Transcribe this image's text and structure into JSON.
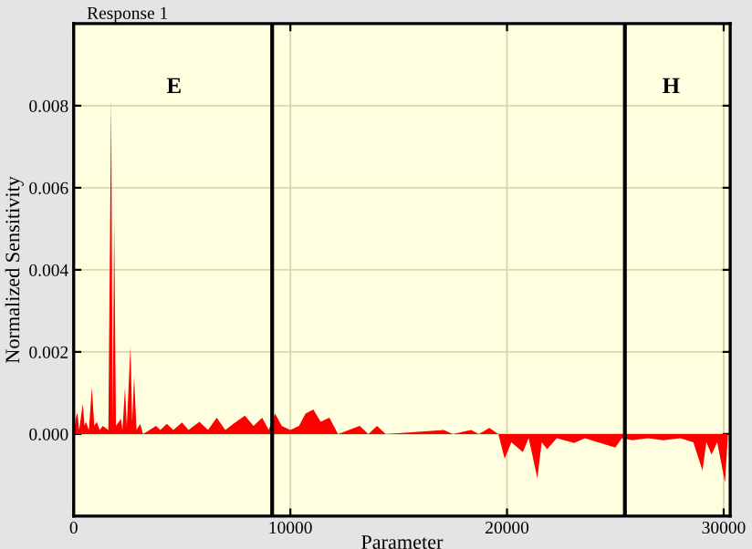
{
  "chart_data": {
    "type": "area",
    "title": "Response 1",
    "xlabel": "Parameter",
    "ylabel": "Normalized Sensitivity",
    "x": [
      0,
      100,
      170,
      250,
      420,
      500,
      560,
      700,
      840,
      950,
      1060,
      1200,
      1340,
      1600,
      1730,
      1800,
      1870,
      1950,
      2180,
      2250,
      2370,
      2450,
      2620,
      2700,
      2790,
      2900,
      3070,
      3200,
      3500,
      3800,
      4000,
      4300,
      4600,
      5000,
      5300,
      5800,
      6200,
      6600,
      7000,
      7500,
      7900,
      8300,
      8700,
      9000,
      9300,
      9600,
      10000,
      10400,
      10700,
      11060,
      11400,
      11800,
      12200,
      13200,
      13600,
      14000,
      14400,
      17080,
      17500,
      18340,
      18700,
      19185,
      19600,
      19890,
      20200,
      20730,
      21000,
      21400,
      21600,
      21850,
      22300,
      23100,
      23600,
      24200,
      25000,
      25300,
      25790,
      26500,
      27200,
      28000,
      28600,
      29020,
      29200,
      29440,
      29700,
      30060,
      30200
    ],
    "series": [
      {
        "color": "#ff0000",
        "values": [
          0.0,
          0.0004,
          0.00052,
          0.0001,
          0.00074,
          0.0002,
          0.0003,
          0.0001,
          0.00114,
          0.0002,
          0.0003,
          0.0001,
          0.0002,
          0.0001,
          0.0082,
          0.0003,
          0.0052,
          0.0002,
          0.00037,
          0.0001,
          0.00114,
          0.0002,
          0.00215,
          0.0003,
          0.0014,
          0.0001,
          0.00025,
          0.0,
          0.0001,
          0.0002,
          0.0001,
          0.00025,
          0.0001,
          0.00028,
          0.0001,
          0.0003,
          0.0001,
          0.0004,
          0.0001,
          0.0003,
          0.00045,
          0.0002,
          0.0004,
          0.0001,
          0.0005,
          0.0002,
          0.0001,
          0.0002,
          0.0005,
          0.0006,
          0.0003,
          0.0004,
          0.0,
          0.0002,
          0.0,
          0.0002,
          0.0,
          0.0001,
          0.0,
          0.0001,
          0.0,
          0.00015,
          0.0,
          -0.0006,
          -0.0002,
          -0.00044,
          -0.0001,
          -0.00108,
          -0.0002,
          -0.00037,
          -0.0001,
          -0.00022,
          -0.0001,
          -0.0002,
          -0.00033,
          -0.0001,
          -0.00015,
          -0.0001,
          -0.00015,
          -0.0001,
          -0.0002,
          -0.00089,
          -0.0002,
          -0.0005,
          -0.0002,
          -0.00118,
          0.0
        ]
      }
    ],
    "xlim": [
      0,
      30300
    ],
    "ylim": [
      -0.002,
      0.01
    ],
    "xticks": [
      0,
      10000,
      20000,
      30000
    ],
    "yticks": [
      {
        "value": 0,
        "label": "0.000"
      },
      {
        "value": 0.002,
        "label": "0.002"
      },
      {
        "value": 0.004,
        "label": "0.004"
      },
      {
        "value": 0.006,
        "label": "0.006"
      },
      {
        "value": 0.008,
        "label": "0.008"
      }
    ],
    "grid": true,
    "ref_lines": [
      {
        "axis": "x",
        "value": 9160,
        "color": "#000000"
      },
      {
        "axis": "x",
        "value": 25440,
        "color": "#000000"
      }
    ],
    "annotations": [
      "E",
      "H"
    ]
  }
}
